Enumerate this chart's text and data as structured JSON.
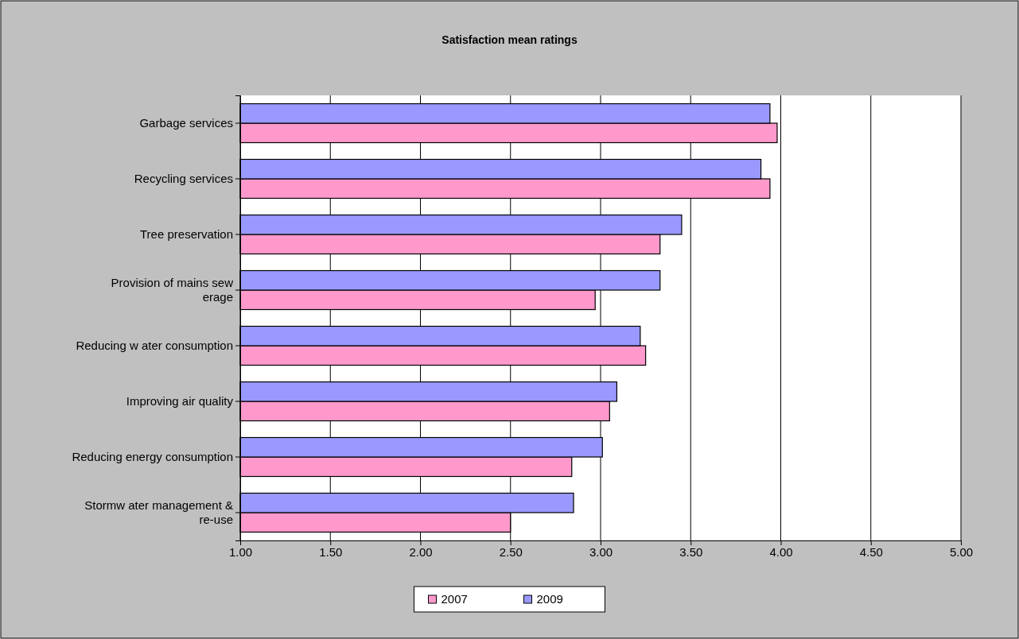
{
  "chart_data": {
    "type": "bar",
    "orientation": "horizontal",
    "title": "Satisfaction mean ratings",
    "categories": [
      "Garbage services",
      "Recycling services",
      "Tree preservation",
      "Provision of mains sew erage",
      "Reducing w ater consumption",
      "Improving air quality",
      "Reducing energy consumption",
      "Stormw ater management & re-use"
    ],
    "series": [
      {
        "name": "2007",
        "color": "#ff99cc",
        "values": [
          3.98,
          3.94,
          3.33,
          2.97,
          3.25,
          3.05,
          2.84,
          2.5
        ]
      },
      {
        "name": "2009",
        "color": "#9999ff",
        "values": [
          3.94,
          3.89,
          3.45,
          3.33,
          3.22,
          3.09,
          3.01,
          2.85
        ]
      }
    ],
    "xlim": [
      1,
      5
    ],
    "xticks": [
      {
        "value": 1,
        "label": "1.00"
      },
      {
        "value": 1.5,
        "label": "1.50"
      },
      {
        "value": 2,
        "label": "2.00"
      },
      {
        "value": 2.5,
        "label": "2.50"
      },
      {
        "value": 3,
        "label": "3.00"
      },
      {
        "value": 3.5,
        "label": "3.50"
      },
      {
        "value": 4,
        "label": "4.00"
      },
      {
        "value": 4.5,
        "label": "4.50"
      },
      {
        "value": 5,
        "label": "5.00"
      }
    ],
    "grid": "x",
    "legend": "bottom"
  }
}
